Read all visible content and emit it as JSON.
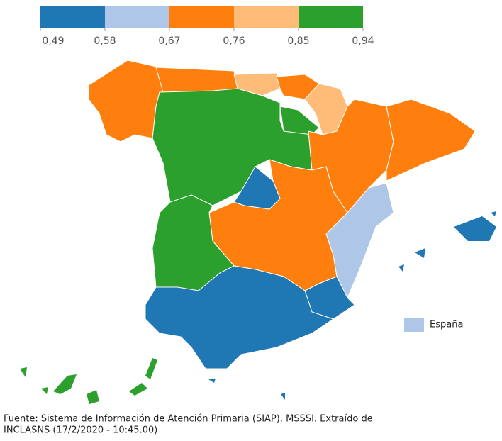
{
  "legend": {
    "bins": [
      {
        "color": "#1f77b4"
      },
      {
        "color": "#aec7e8"
      },
      {
        "color": "#ff7f0e"
      },
      {
        "color": "#ffbb78"
      },
      {
        "color": "#2ca02c"
      }
    ],
    "ticks": [
      {
        "value": 0.49,
        "label": "0,49"
      },
      {
        "value": 0.58,
        "label": "0,58"
      },
      {
        "value": 0.67,
        "label": "0,67"
      },
      {
        "value": 0.76,
        "label": "0,76"
      },
      {
        "value": 0.85,
        "label": "0,85"
      },
      {
        "value": 0.94,
        "label": "0,94"
      }
    ]
  },
  "reference": {
    "label": "España",
    "color": "#aec7e8"
  },
  "source": [
    "Fuente: Sistema de Información de Atención Primaria (SIAP). MSSSI. Extraído de",
    "INCLASNS (17/2/2020 - 10:45.00)"
  ]
}
